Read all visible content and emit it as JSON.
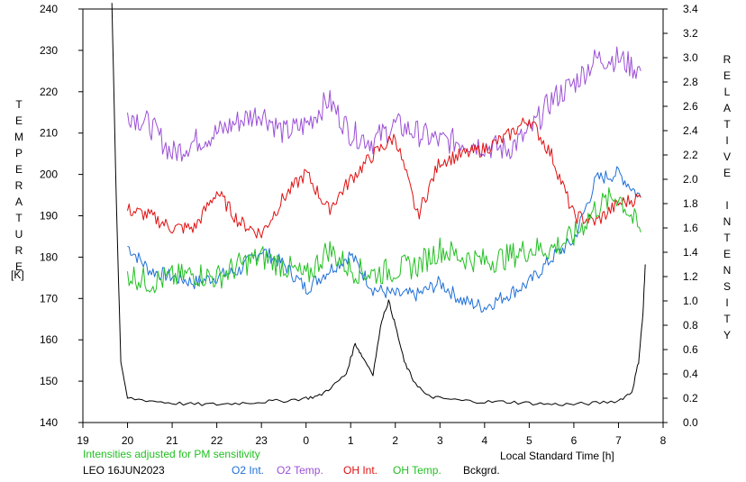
{
  "chart_data": {
    "type": "line",
    "left_axis": {
      "label": "TEMPERATURE",
      "unit": "[K]",
      "ylim": [
        140,
        240
      ],
      "ticks": [
        140,
        150,
        160,
        170,
        180,
        190,
        200,
        210,
        220,
        230,
        240
      ]
    },
    "right_axis": {
      "label": "RELATIVE INTENSITY",
      "ylim": [
        0.0,
        3.4
      ],
      "ticks": [
        "0.0",
        "0.2",
        "0.4",
        "0.6",
        "0.8",
        "1.0",
        "1.2",
        "1.4",
        "1.6",
        "1.8",
        "2.0",
        "2.2",
        "2.4",
        "2.6",
        "2.8",
        "3.0",
        "3.2",
        "3.4"
      ]
    },
    "x_axis": {
      "label": "Local Standard Time [h]",
      "ticks": [
        "19",
        "20",
        "21",
        "22",
        "23",
        "0",
        "1",
        "2",
        "3",
        "4",
        "5",
        "6",
        "7",
        "8"
      ]
    },
    "note": "Intensities adjusted for PM sensitivity",
    "footer_title": "LEO 16JUN2023",
    "series": [
      {
        "name": "O2 Int.",
        "color": "#1e6fd9",
        "axis": "right",
        "x": [
          20.0,
          20.5,
          21.0,
          21.5,
          22.0,
          22.5,
          23.0,
          23.5,
          24.0,
          24.5,
          25.0,
          25.5,
          26.0,
          26.5,
          27.0,
          27.5,
          28.0,
          28.5,
          29.0,
          29.5,
          30.0,
          30.5,
          31.0,
          31.5
        ],
        "y": [
          1.45,
          1.25,
          1.2,
          1.15,
          1.2,
          1.25,
          1.42,
          1.3,
          1.1,
          1.25,
          1.38,
          1.1,
          1.05,
          1.05,
          1.15,
          1.0,
          0.95,
          1.05,
          1.15,
          1.35,
          1.5,
          2.0,
          2.05,
          1.85
        ]
      },
      {
        "name": "O2 Temp.",
        "color": "#9b4fd6",
        "axis": "left",
        "x": [
          20.0,
          20.5,
          21.0,
          21.5,
          22.0,
          22.5,
          23.0,
          23.5,
          24.0,
          24.5,
          25.0,
          25.5,
          26.0,
          26.5,
          27.0,
          27.5,
          28.0,
          28.5,
          29.0,
          29.5,
          30.0,
          30.5,
          31.0,
          31.5
        ],
        "y": [
          215,
          212,
          205,
          208,
          210,
          213,
          215,
          210,
          212,
          218,
          210,
          208,
          212,
          210,
          208,
          208,
          207,
          206,
          210,
          218,
          222,
          228,
          228,
          225
        ]
      },
      {
        "name": "OH Int.",
        "color": "#e01010",
        "axis": "right",
        "x": [
          20.0,
          20.5,
          21.0,
          21.5,
          22.0,
          22.5,
          23.0,
          23.5,
          24.0,
          24.5,
          25.0,
          25.5,
          26.0,
          26.5,
          27.0,
          27.5,
          28.0,
          28.5,
          29.0,
          29.5,
          30.0,
          30.5,
          31.0,
          31.5
        ],
        "y": [
          1.75,
          1.7,
          1.6,
          1.6,
          1.9,
          1.65,
          1.55,
          1.85,
          2.05,
          1.75,
          2.0,
          2.2,
          2.35,
          1.7,
          2.15,
          2.2,
          2.25,
          2.35,
          2.5,
          2.2,
          1.7,
          1.65,
          1.8,
          1.85
        ]
      },
      {
        "name": "OH Temp.",
        "color": "#22c022",
        "axis": "left",
        "x": [
          20.0,
          20.5,
          21.0,
          21.5,
          22.0,
          22.5,
          23.0,
          23.5,
          24.0,
          24.5,
          25.0,
          25.5,
          26.0,
          26.5,
          27.0,
          27.5,
          28.0,
          28.5,
          29.0,
          29.5,
          30.0,
          30.5,
          31.0,
          31.5
        ],
        "y": [
          176,
          174,
          175,
          176,
          175,
          178,
          180,
          178,
          175,
          182,
          177,
          176,
          177,
          178,
          182,
          180,
          179,
          180,
          182,
          182,
          185,
          192,
          195,
          186
        ]
      },
      {
        "name": "Bckgrd.",
        "color": "#000000",
        "axis": "right",
        "x": [
          19.65,
          19.75,
          19.85,
          20.0,
          20.5,
          21.0,
          21.5,
          22.0,
          22.5,
          23.0,
          23.5,
          24.0,
          24.3,
          24.6,
          24.9,
          25.1,
          25.25,
          25.5,
          25.7,
          25.85,
          26.0,
          26.2,
          26.4,
          26.7,
          27.0,
          27.5,
          28.0,
          28.5,
          29.0,
          29.5,
          30.0,
          30.5,
          31.0,
          31.3,
          31.45,
          31.55,
          31.6
        ],
        "y": [
          3.45,
          1.8,
          0.5,
          0.2,
          0.18,
          0.16,
          0.15,
          0.15,
          0.16,
          0.17,
          0.18,
          0.2,
          0.22,
          0.3,
          0.4,
          0.65,
          0.55,
          0.4,
          0.85,
          1.0,
          0.8,
          0.5,
          0.35,
          0.22,
          0.2,
          0.18,
          0.17,
          0.17,
          0.16,
          0.15,
          0.15,
          0.16,
          0.18,
          0.25,
          0.5,
          0.9,
          1.3
        ]
      }
    ]
  }
}
